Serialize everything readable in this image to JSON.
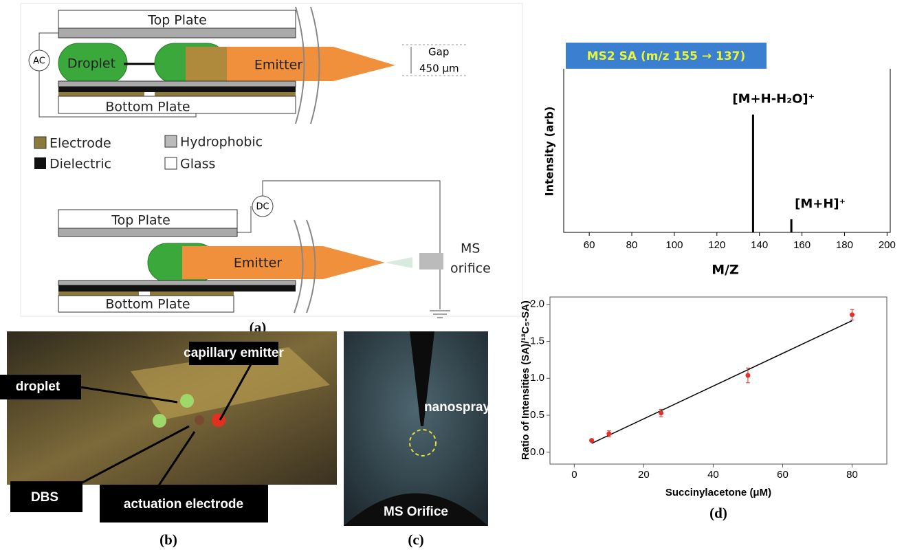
{
  "panel_a": {
    "top_plate": "Top Plate",
    "droplet": "Droplet",
    "emitter": "Emitter",
    "gap": "Gap",
    "gap_size": "450 μm",
    "bottom_plate": "Bottom Plate",
    "ac": "AC",
    "legend": [
      "Electrode",
      "Dielectric",
      "Hydrophobic",
      "Glass"
    ],
    "dc": "DC",
    "top_plate_2": "Top Plate",
    "emitter_2": "Emitter",
    "ms": "MS",
    "orifice": "orifice",
    "bottom_plate_2": "Bottom Plate",
    "caption": "(a)"
  },
  "panel_b": {
    "capillary_emitter": "capillary emitter",
    "droplet": "droplet",
    "dbs": "DBS",
    "actuation_electrode": "actuation electrode",
    "caption": "(b)"
  },
  "panel_c": {
    "nanospray": "nanospray",
    "ms_orifice": "MS Orifice",
    "caption": "(c)"
  },
  "chart_data": [
    {
      "type": "bar",
      "title": "MS2 SA (m/z 155 → 137)",
      "x_label": "M/Z",
      "y_label": "Intensity (arb)",
      "x": [
        137,
        155
      ],
      "values": [
        72,
        8
      ],
      "color": "#000000",
      "annotations": [
        "[M+H-H₂O]⁺",
        "[M+H]⁺"
      ],
      "xlim": [
        48,
        201.5
      ],
      "xticks": [
        60,
        80,
        100,
        120,
        140,
        160,
        180,
        200
      ],
      "ylim": [
        0,
        100
      ]
    },
    {
      "type": "scatter",
      "x_label": "Succinylacetone (μM)",
      "y_label": "Ratio of Intensities (SA)/¹³C₅-SA)",
      "caption": "(d)",
      "x": [
        5,
        10,
        25,
        50,
        80
      ],
      "values": [
        0.16,
        0.25,
        0.53,
        1.04,
        1.86
      ],
      "errors": [
        0.02,
        0.04,
        0.05,
        0.1,
        0.07
      ],
      "color": "#e8302a",
      "fit": {
        "x": [
          5,
          80
        ],
        "values": [
          0.12,
          1.78
        ],
        "color": "#000000"
      },
      "xlim": [
        -7,
        90
      ],
      "xticks": [
        0,
        20,
        40,
        60,
        80
      ],
      "ylim": [
        -0.16,
        2.1
      ],
      "yticks": [
        {
          "value": 0,
          "label": "0.0"
        },
        0.5,
        {
          "value": 1,
          "label": "1.0"
        },
        1.5,
        {
          "value": 2,
          "label": "2.0"
        }
      ]
    }
  ]
}
